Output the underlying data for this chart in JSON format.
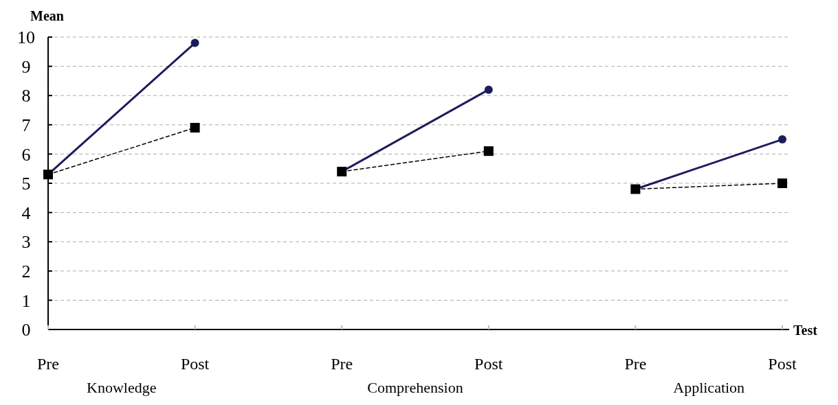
{
  "chart_data": {
    "type": "line",
    "ylabel": "Mean",
    "xlabel": "Test",
    "categories": [
      "Pre",
      "Post",
      "Pre",
      "Post",
      "Pre",
      "Post"
    ],
    "annotations": [
      "Knowledge",
      "Comprehension",
      "Application"
    ],
    "ylim": [
      0,
      10
    ],
    "yticks": [
      0,
      1,
      2,
      3,
      4,
      5,
      6,
      7,
      8,
      9,
      10
    ],
    "grid": "y",
    "series": [
      {
        "color": "#1c1c5c",
        "marker": "circle",
        "line_style": "solid",
        "values": [
          5.3,
          9.8,
          null,
          null,
          null,
          null
        ]
      },
      {
        "color": "#000000",
        "marker": "square",
        "line_style": "dashed",
        "values": [
          5.3,
          6.9,
          null,
          null,
          null,
          null
        ]
      },
      {
        "color": "#1c1c5c",
        "marker": "circle",
        "line_style": "solid",
        "values": [
          null,
          null,
          5.4,
          8.2,
          null,
          null
        ]
      },
      {
        "color": "#000000",
        "marker": "square",
        "line_style": "dashed",
        "values": [
          null,
          null,
          5.4,
          6.1,
          null,
          null
        ]
      },
      {
        "color": "#1c1c5c",
        "marker": "circle",
        "line_style": "solid",
        "values": [
          null,
          null,
          null,
          null,
          4.8,
          6.5
        ]
      },
      {
        "color": "#000000",
        "marker": "square",
        "line_style": "dashed",
        "values": [
          null,
          null,
          null,
          null,
          4.8,
          5.0
        ]
      }
    ]
  }
}
